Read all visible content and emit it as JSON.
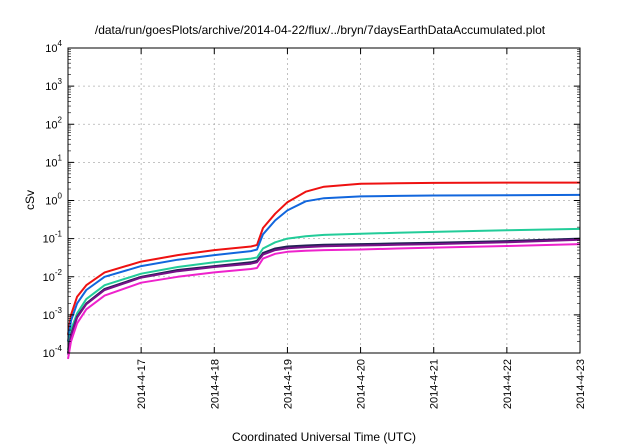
{
  "chart_data": {
    "type": "line",
    "title": "/data/run/goesPlots/archive/2014-04-22/flux/../bryn/7daysEarthDataAccumulated.plot",
    "xlabel": "Coordinated Universal Time (UTC)",
    "ylabel": "cSv",
    "y_scale": "log",
    "ylim": [
      0.0001,
      10000
    ],
    "y_ticks": [
      {
        "base": "10",
        "exp": "-4"
      },
      {
        "base": "10",
        "exp": "-3"
      },
      {
        "base": "10",
        "exp": "-2"
      },
      {
        "base": "10",
        "exp": "-1"
      },
      {
        "base": "10",
        "exp": "0"
      },
      {
        "base": "10",
        "exp": "1"
      },
      {
        "base": "10",
        "exp": "2"
      },
      {
        "base": "10",
        "exp": "3"
      },
      {
        "base": "10",
        "exp": "4"
      }
    ],
    "x_ticks": [
      "2014-4-17",
      "2014-4-18",
      "2014-4-19",
      "2014-4-20",
      "2014-4-21",
      "2014-4-22",
      "2014-4-23"
    ],
    "xlim": [
      "2014-04-16T00:00",
      "2014-04-23T00:00"
    ],
    "grid": true,
    "series": [
      {
        "color": "#ee1111",
        "x": [
          "2014-04-16T00:00",
          "2014-04-16T01:00",
          "2014-04-16T03:00",
          "2014-04-16T06:00",
          "2014-04-16T12:00",
          "2014-04-17T00:00",
          "2014-04-17T12:00",
          "2014-04-18T00:00",
          "2014-04-18T12:00",
          "2014-04-18T14:00",
          "2014-04-18T16:00",
          "2014-04-18T20:00",
          "2014-04-19T00:00",
          "2014-04-19T06:00",
          "2014-04-19T12:00",
          "2014-04-20T00:00",
          "2014-04-20T12:00",
          "2014-04-21T00:00",
          "2014-04-22T00:00",
          "2014-04-23T00:00"
        ],
        "y": [
          0.0003,
          0.001,
          0.003,
          0.006,
          0.013,
          0.025,
          0.037,
          0.05,
          0.062,
          0.068,
          0.19,
          0.45,
          0.9,
          1.7,
          2.3,
          2.75,
          2.85,
          2.9,
          2.95,
          2.95
        ]
      },
      {
        "color": "#1166dd",
        "x": [
          "2014-04-16T00:00",
          "2014-04-16T01:00",
          "2014-04-16T03:00",
          "2014-04-16T06:00",
          "2014-04-16T12:00",
          "2014-04-17T00:00",
          "2014-04-17T12:00",
          "2014-04-18T00:00",
          "2014-04-18T12:00",
          "2014-04-18T14:00",
          "2014-04-18T16:00",
          "2014-04-18T20:00",
          "2014-04-19T00:00",
          "2014-04-19T06:00",
          "2014-04-19T12:00",
          "2014-04-20T00:00",
          "2014-04-20T12:00",
          "2014-04-21T00:00",
          "2014-04-22T00:00",
          "2014-04-23T00:00"
        ],
        "y": [
          0.0002,
          0.0007,
          0.002,
          0.0045,
          0.01,
          0.019,
          0.028,
          0.037,
          0.047,
          0.052,
          0.13,
          0.3,
          0.55,
          0.95,
          1.15,
          1.28,
          1.32,
          1.35,
          1.38,
          1.4
        ]
      },
      {
        "color": "#22cc99",
        "x": [
          "2014-04-16T00:00",
          "2014-04-16T01:00",
          "2014-04-16T03:00",
          "2014-04-16T06:00",
          "2014-04-16T12:00",
          "2014-04-17T00:00",
          "2014-04-17T12:00",
          "2014-04-18T00:00",
          "2014-04-18T12:00",
          "2014-04-18T14:00",
          "2014-04-18T16:00",
          "2014-04-18T20:00",
          "2014-04-19T00:00",
          "2014-04-19T06:00",
          "2014-04-19T12:00",
          "2014-04-20T00:00",
          "2014-04-20T12:00",
          "2014-04-21T00:00",
          "2014-04-22T00:00",
          "2014-04-23T00:00"
        ],
        "y": [
          0.00012,
          0.0004,
          0.0011,
          0.0026,
          0.006,
          0.012,
          0.018,
          0.024,
          0.03,
          0.032,
          0.055,
          0.08,
          0.1,
          0.115,
          0.125,
          0.135,
          0.142,
          0.15,
          0.165,
          0.18
        ]
      },
      {
        "color": "#222255",
        "x": [
          "2014-04-16T00:00",
          "2014-04-16T01:00",
          "2014-04-16T03:00",
          "2014-04-16T06:00",
          "2014-04-16T12:00",
          "2014-04-17T00:00",
          "2014-04-17T12:00",
          "2014-04-18T00:00",
          "2014-04-18T12:00",
          "2014-04-18T14:00",
          "2014-04-18T16:00",
          "2014-04-18T20:00",
          "2014-04-19T00:00",
          "2014-04-19T06:00",
          "2014-04-19T12:00",
          "2014-04-20T00:00",
          "2014-04-20T12:00",
          "2014-04-21T00:00",
          "2014-04-22T00:00",
          "2014-04-23T00:00"
        ],
        "y": [
          0.0001,
          0.0003,
          0.0009,
          0.002,
          0.0048,
          0.01,
          0.015,
          0.019,
          0.024,
          0.026,
          0.042,
          0.055,
          0.062,
          0.066,
          0.069,
          0.072,
          0.075,
          0.078,
          0.086,
          0.1
        ]
      },
      {
        "color": "#771188",
        "x": [
          "2014-04-16T00:00",
          "2014-04-16T01:00",
          "2014-04-16T03:00",
          "2014-04-16T06:00",
          "2014-04-16T12:00",
          "2014-04-17T00:00",
          "2014-04-17T12:00",
          "2014-04-18T00:00",
          "2014-04-18T12:00",
          "2014-04-18T14:00",
          "2014-04-18T16:00",
          "2014-04-18T20:00",
          "2014-04-19T00:00",
          "2014-04-19T06:00",
          "2014-04-19T12:00",
          "2014-04-20T00:00",
          "2014-04-20T12:00",
          "2014-04-21T00:00",
          "2014-04-22T00:00",
          "2014-04-23T00:00"
        ],
        "y": [
          9e-05,
          0.00028,
          0.00085,
          0.0019,
          0.0045,
          0.0095,
          0.014,
          0.018,
          0.022,
          0.024,
          0.038,
          0.05,
          0.056,
          0.06,
          0.063,
          0.066,
          0.069,
          0.072,
          0.08,
          0.093
        ]
      },
      {
        "color": "#ee22cc",
        "x": [
          "2014-04-16T00:00",
          "2014-04-16T01:00",
          "2014-04-16T03:00",
          "2014-04-16T06:00",
          "2014-04-16T12:00",
          "2014-04-17T00:00",
          "2014-04-17T12:00",
          "2014-04-18T00:00",
          "2014-04-18T12:00",
          "2014-04-18T14:00",
          "2014-04-18T16:00",
          "2014-04-18T20:00",
          "2014-04-19T00:00",
          "2014-04-19T06:00",
          "2014-04-19T12:00",
          "2014-04-20T00:00",
          "2014-04-20T12:00",
          "2014-04-21T00:00",
          "2014-04-22T00:00",
          "2014-04-23T00:00"
        ],
        "y": [
          7e-05,
          0.0002,
          0.0006,
          0.0014,
          0.0032,
          0.007,
          0.01,
          0.013,
          0.016,
          0.017,
          0.03,
          0.04,
          0.045,
          0.048,
          0.05,
          0.052,
          0.055,
          0.058,
          0.064,
          0.072
        ]
      }
    ]
  }
}
